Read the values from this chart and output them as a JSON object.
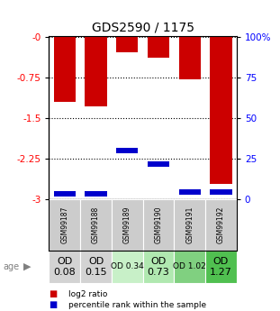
{
  "title": "GDS2590 / 1175",
  "samples": [
    "GSM99187",
    "GSM99188",
    "GSM99189",
    "GSM99190",
    "GSM99191",
    "GSM99192"
  ],
  "log2_ratios": [
    -1.2,
    -1.28,
    -0.28,
    -0.38,
    -0.78,
    -2.72
  ],
  "percentile_ranks_y": [
    -2.9,
    -2.9,
    -2.1,
    -2.35,
    -2.87,
    -2.87
  ],
  "ylim_left": [
    -3,
    0
  ],
  "ylim_right": [
    0,
    100
  ],
  "yticks_left": [
    0,
    -0.75,
    -1.5,
    -2.25,
    -3
  ],
  "yticks_right": [
    100,
    75,
    50,
    25,
    0
  ],
  "ytick_labels_left": [
    "-0",
    "-0.75",
    "-1.5",
    "-2.25",
    "-3"
  ],
  "ytick_labels_right": [
    "100%",
    "75",
    "50",
    "25",
    "0"
  ],
  "bar_color": "#cc0000",
  "percentile_color": "#0000cc",
  "age_values": [
    "OD\n0.08",
    "OD\n0.15",
    "OD 0.34",
    "OD\n0.73",
    "OD 1.02",
    "OD\n1.27"
  ],
  "age_bg_colors": [
    "#d3d3d3",
    "#d3d3d3",
    "#c8f0c8",
    "#b0e8b0",
    "#80d080",
    "#50c050"
  ],
  "age_font_sizes": [
    8,
    8,
    6.5,
    8,
    6.5,
    8
  ],
  "legend_items": [
    "log2 ratio",
    "percentile rank within the sample"
  ],
  "legend_colors": [
    "#cc0000",
    "#0000cc"
  ]
}
